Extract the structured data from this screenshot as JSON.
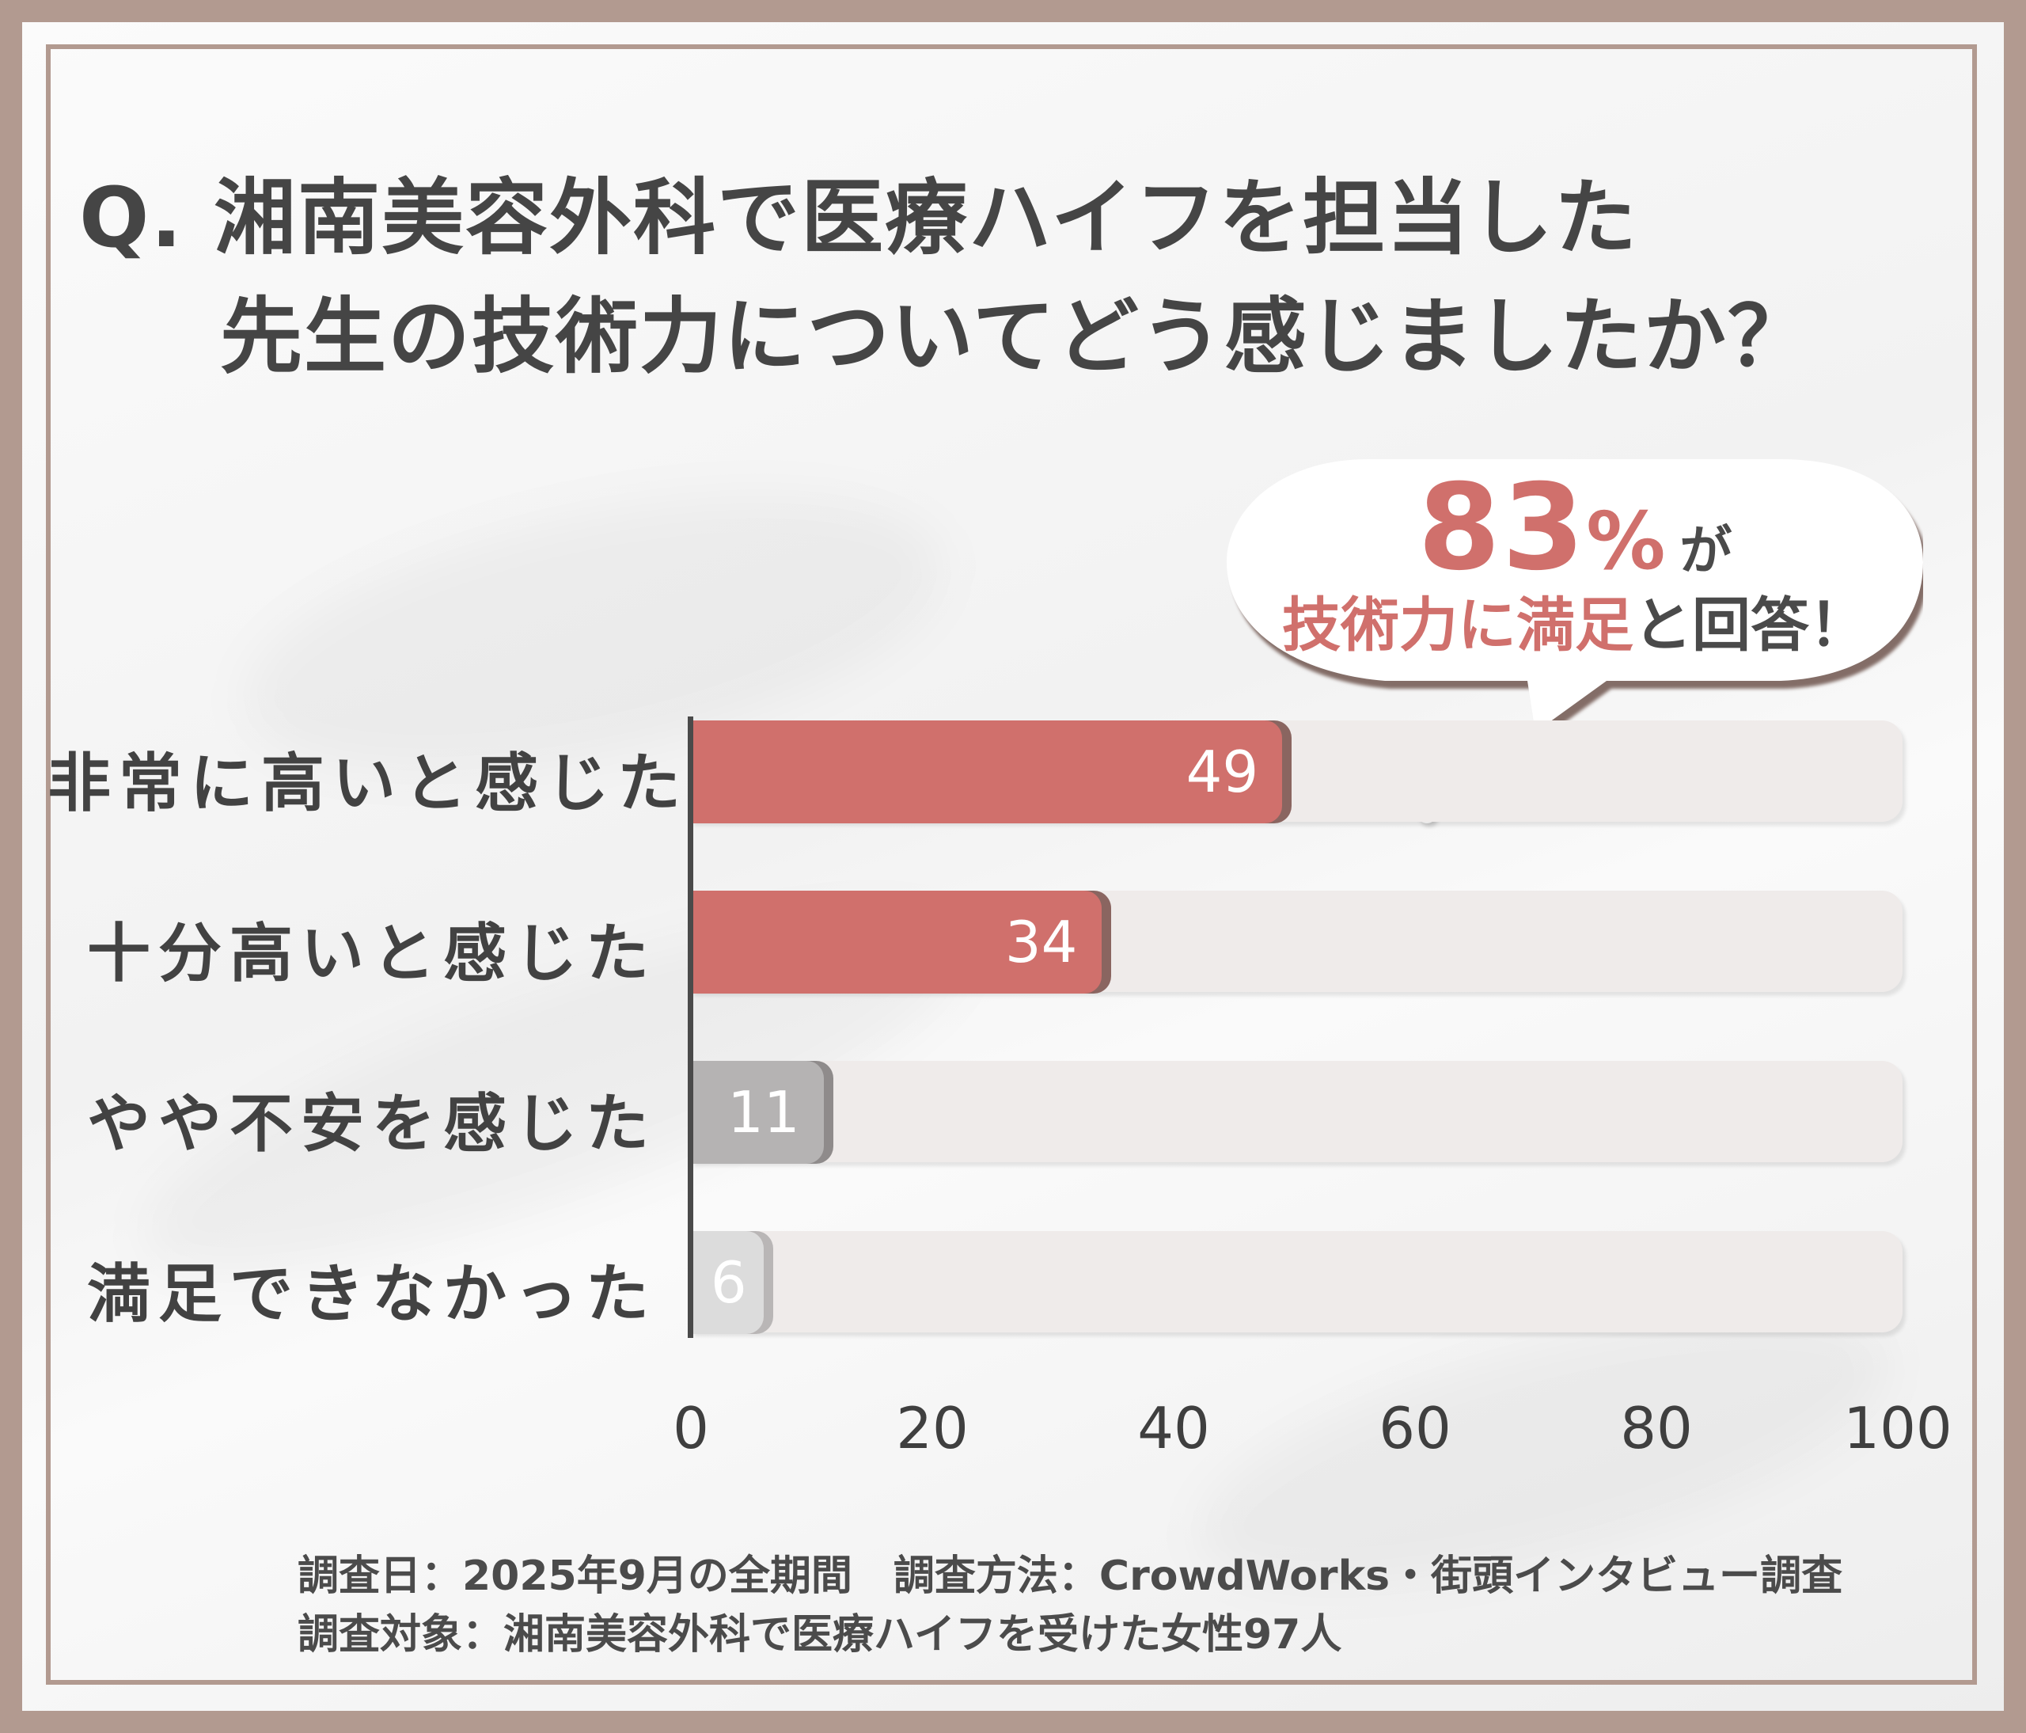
{
  "title": {
    "line1": "Q. 湘南美容外科で医療ハイフを担当した",
    "line2": "先生の技術力についてどう感じましたか？"
  },
  "callout": {
    "number": "83",
    "percent": "%",
    "suffix": "が",
    "line2_accent": "技術力に満足",
    "line2_rest": "と回答！"
  },
  "chart_data": {
    "type": "bar",
    "orientation": "horizontal",
    "categories": [
      "非常に高いと感じた",
      "十分高いと感じた",
      "やや不安を感じた",
      "満足できなかった"
    ],
    "values": [
      49,
      34,
      11,
      6
    ],
    "value_labels": [
      "49",
      "34",
      "11",
      "6"
    ],
    "xlim": [
      0,
      100
    ],
    "xticks": [
      "0",
      "20",
      "40",
      "60",
      "80",
      "100"
    ],
    "grid": false,
    "colors": {
      "highlight": "#d0706c",
      "highlight_edge": "#8a6560",
      "neutral": "#b5b3b3",
      "neutral_edge": "#8f8b8b",
      "muted": "#dcdcdc",
      "track": "#efebea"
    }
  },
  "footer": {
    "line1": "調査日：2025年9月の全期間　調査方法：CrowdWorks・街頭インタビュー調査",
    "line2": "調査対象：湘南美容外科で医療ハイフを受けた女性97人"
  }
}
